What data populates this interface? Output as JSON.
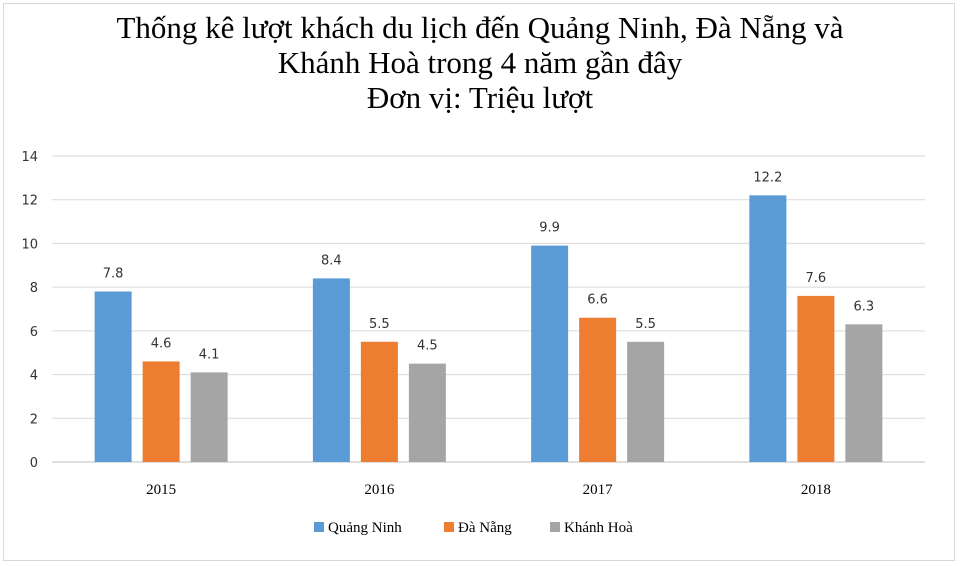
{
  "chart_data": {
    "type": "bar",
    "title_lines": [
      "Thống kê lượt khách  du lịch đến Quảng Ninh, Đà Nẵng và",
      "Khánh Hoà trong 4 năm gần đây",
      "Đơn vị: Triệu lượt"
    ],
    "categories": [
      "2015",
      "2016",
      "2017",
      "2018"
    ],
    "series": [
      {
        "name": "Quảng Ninh",
        "color": "#5b9bd5",
        "values": [
          7.8,
          8.4,
          9.9,
          12.2
        ]
      },
      {
        "name": "Đà Nẵng",
        "color": "#ed7d31",
        "values": [
          4.6,
          5.5,
          6.6,
          7.6
        ]
      },
      {
        "name": "Khánh Hoà",
        "color": "#a5a5a5",
        "values": [
          4.1,
          4.5,
          5.5,
          6.3
        ]
      }
    ],
    "data_labels": [
      [
        "7.8",
        "8.4",
        "9.9",
        "12.2"
      ],
      [
        "4.6",
        "5.5",
        "6.6",
        "7.6"
      ],
      [
        "4.1",
        "4.5",
        "5.5",
        "6.3"
      ]
    ],
    "ylim": [
      0,
      14
    ],
    "yticks": [
      "0",
      "2",
      "4",
      "6",
      "8",
      "10",
      "12",
      "14"
    ],
    "grid": true,
    "legend_position": "bottom"
  }
}
